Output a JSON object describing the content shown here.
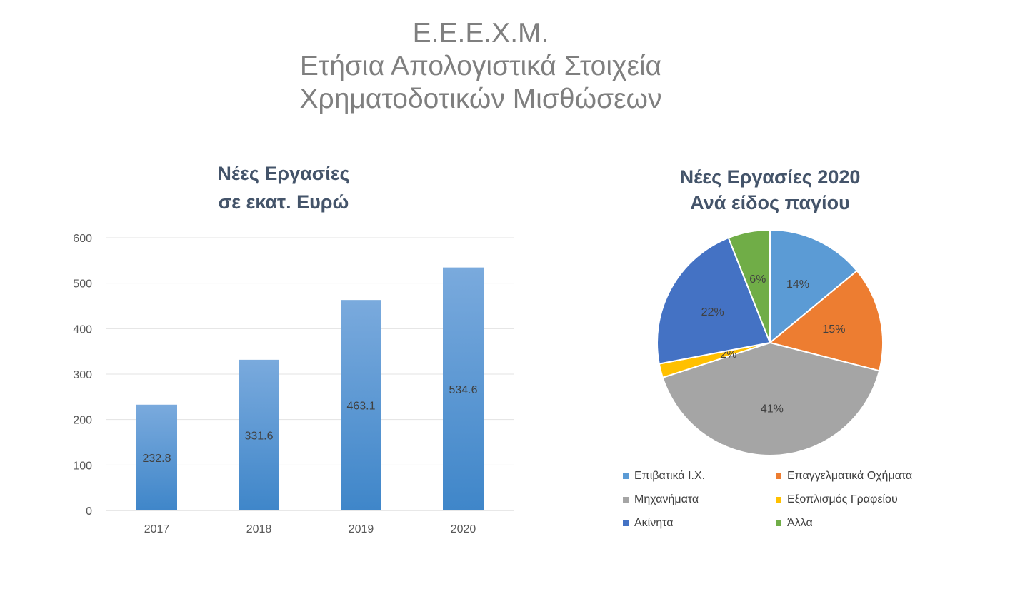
{
  "main_title": {
    "line1": "Ε.Ε.Ε.Χ.Μ.",
    "line2": "Ετήσια Απολογιστικά Στοιχεία",
    "line3": "Χρηματοδοτικών Μισθώσεων"
  },
  "chart_data": [
    {
      "type": "bar",
      "title_lines": [
        "Νέες Εργασίες",
        "σε εκατ. Ευρώ"
      ],
      "categories": [
        "2017",
        "2018",
        "2019",
        "2020"
      ],
      "values": [
        232.8,
        331.6,
        463.1,
        534.6
      ],
      "data_labels": [
        "232.8",
        "331.6",
        "463.1",
        "534.6"
      ],
      "ylim": [
        0,
        600
      ],
      "yticks": [
        0,
        100,
        200,
        300,
        400,
        500,
        600
      ],
      "grid": true,
      "bar_color_top": "#7aaadd",
      "bar_color_bottom": "#3f86c9"
    },
    {
      "type": "pie",
      "title_lines": [
        "Νέες Εργασίες 2020",
        "Ανά είδος παγίου"
      ],
      "slices": [
        {
          "label": "Επιβατικά Ι.Χ.",
          "value": 14,
          "pct_label": "14%",
          "color": "#5b9bd5"
        },
        {
          "label": "Επαγγελματικά Οχήματα",
          "value": 15,
          "pct_label": "15%",
          "color": "#ed7d31"
        },
        {
          "label": "Μηχανήματα",
          "value": 41,
          "pct_label": "41%",
          "color": "#a5a5a5"
        },
        {
          "label": "Εξοπλισμός Γραφείου",
          "value": 2,
          "pct_label": "2%",
          "color": "#ffc000"
        },
        {
          "label": "Ακίνητα",
          "value": 22,
          "pct_label": "22%",
          "color": "#4472c4"
        },
        {
          "label": "Άλλα",
          "value": 6,
          "pct_label": "6%",
          "color": "#70ad47"
        }
      ],
      "legend_position": "bottom"
    }
  ]
}
